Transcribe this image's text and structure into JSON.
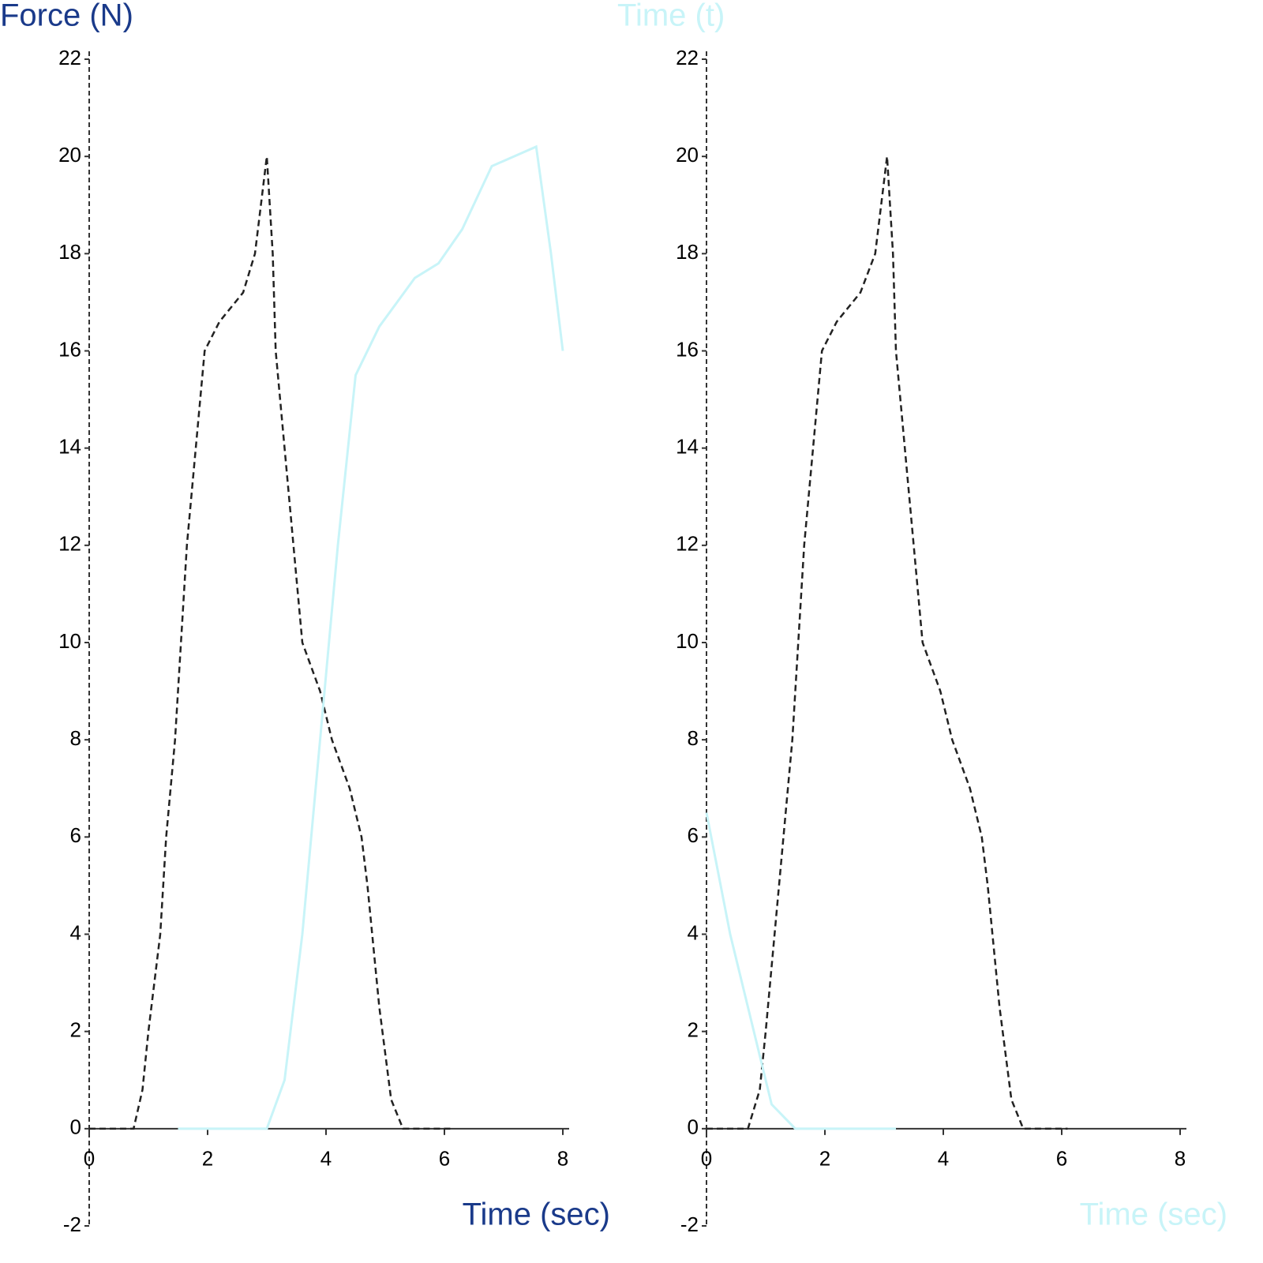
{
  "chart_data": [
    {
      "type": "line",
      "y_label": "Force (N)",
      "x_label": "Time (sec)",
      "label_color": "#1a3a8a",
      "xlim": [
        0,
        8
      ],
      "xticks": [
        0,
        2,
        4,
        6,
        8
      ],
      "ylim": [
        -2,
        22
      ],
      "yticks": [
        -2,
        0,
        2,
        4,
        6,
        8,
        10,
        12,
        14,
        16,
        18,
        20,
        22
      ],
      "series": [
        {
          "name": "Force",
          "color": "#222222",
          "dashed": true,
          "x": [
            0,
            0.75,
            0.9,
            1.0,
            1.2,
            1.3,
            1.45,
            1.55,
            1.65,
            1.8,
            1.95,
            2.2,
            2.6,
            2.8,
            3.0,
            3.1,
            3.15,
            3.3,
            3.45,
            3.6,
            3.9,
            4.1,
            4.4,
            4.6,
            4.7,
            4.9,
            5.1,
            5.3,
            6.1
          ],
          "values": [
            0,
            0,
            0.8,
            2,
            4,
            6,
            8,
            10,
            12,
            14,
            16,
            16.6,
            17.2,
            18,
            20,
            18,
            16,
            14,
            12,
            10,
            9,
            8,
            7,
            6,
            5,
            2.5,
            0.6,
            0,
            0
          ]
        },
        {
          "name": "Time",
          "color": "#c8f4f8",
          "dashed": false,
          "x": [
            1.5,
            3.0,
            3.3,
            3.6,
            3.9,
            4.2,
            4.5,
            4.9,
            5.5,
            5.9,
            6.3,
            6.8,
            7.55,
            7.8,
            8.0
          ],
          "values": [
            0,
            0,
            1,
            4,
            8,
            12,
            15.5,
            16.5,
            17.5,
            17.8,
            18.5,
            19.8,
            20.2,
            18,
            16
          ]
        }
      ]
    },
    {
      "type": "line",
      "y_label": "Time (t)",
      "x_label": "Time (sec)",
      "label_color": "#c8f4f8",
      "xlim": [
        0,
        8
      ],
      "xticks": [
        0,
        2,
        4,
        6,
        8
      ],
      "ylim": [
        -2,
        22
      ],
      "yticks": [
        -2,
        0,
        2,
        4,
        6,
        8,
        10,
        12,
        14,
        16,
        18,
        20,
        22
      ],
      "series": [
        {
          "name": "Force",
          "color": "#222222",
          "dashed": true,
          "x": [
            0,
            0.7,
            0.9,
            1.0,
            1.15,
            1.3,
            1.45,
            1.55,
            1.65,
            1.8,
            1.95,
            2.2,
            2.6,
            2.85,
            3.05,
            3.15,
            3.2,
            3.35,
            3.5,
            3.65,
            3.95,
            4.15,
            4.45,
            4.65,
            4.75,
            4.95,
            5.15,
            5.35,
            6.1
          ],
          "values": [
            0,
            0,
            0.8,
            2,
            4,
            6,
            8,
            10,
            12,
            14,
            16,
            16.6,
            17.2,
            18,
            20,
            18,
            16,
            14,
            12,
            10,
            9,
            8,
            7,
            6,
            5,
            2.5,
            0.6,
            0,
            0
          ]
        },
        {
          "name": "Time",
          "color": "#c8f4f8",
          "dashed": false,
          "x": [
            0,
            0.4,
            0.8,
            1.1,
            1.5,
            3.2
          ],
          "values": [
            6.5,
            4,
            2,
            0.5,
            0,
            0
          ]
        }
      ]
    }
  ]
}
